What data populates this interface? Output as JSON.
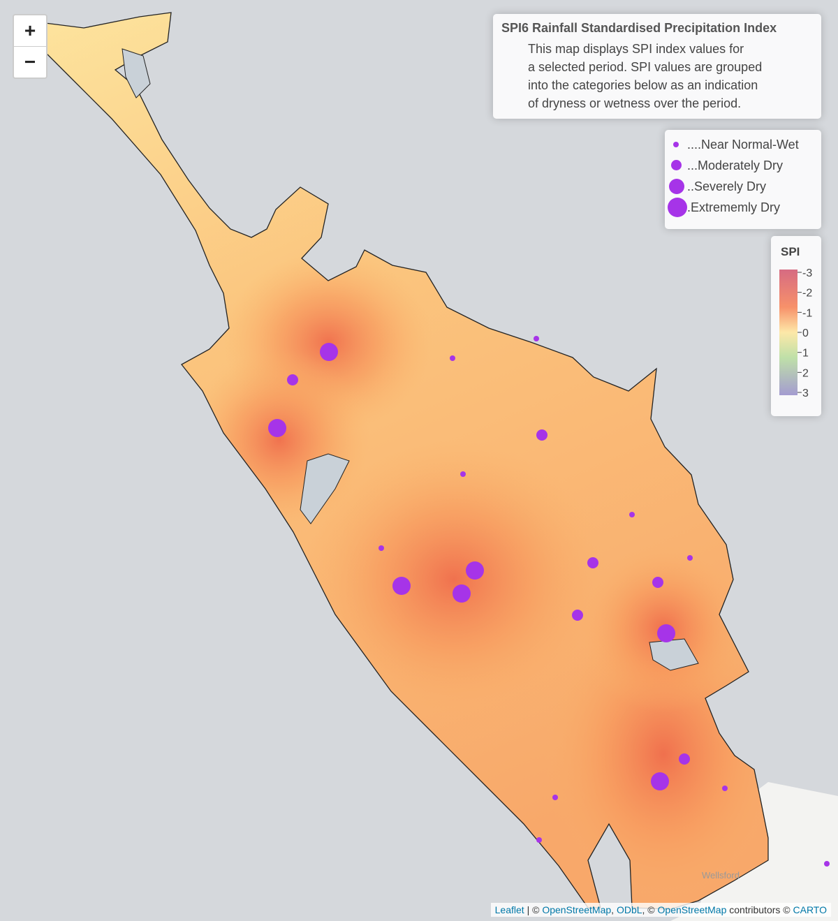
{
  "zoom": {
    "in": "+",
    "out": "−"
  },
  "info": {
    "title": "SPI6 Rainfall Standardised Precipitation Index",
    "lines": [
      "This map displays SPI index values for",
      "a selected period. SPI values are grouped",
      "into the categories below as an indication",
      "of dryness or wetness over the period."
    ]
  },
  "size_legend": [
    "....Near Normal-Wet",
    "...Moderately Dry",
    "..Severely Dry",
    ".Extrememly Dry"
  ],
  "spi_legend": {
    "title": "SPI",
    "ticks": [
      -3,
      -2,
      -1,
      0,
      1,
      2,
      3
    ]
  },
  "place_labels": [
    "Wellsford"
  ],
  "attribution": [
    "Leaflet",
    "| ©",
    "OpenStreetMap",
    ",",
    "ODbL",
    ", ©",
    "OpenStreetMap",
    "contributors ©",
    "CARTO"
  ]
}
